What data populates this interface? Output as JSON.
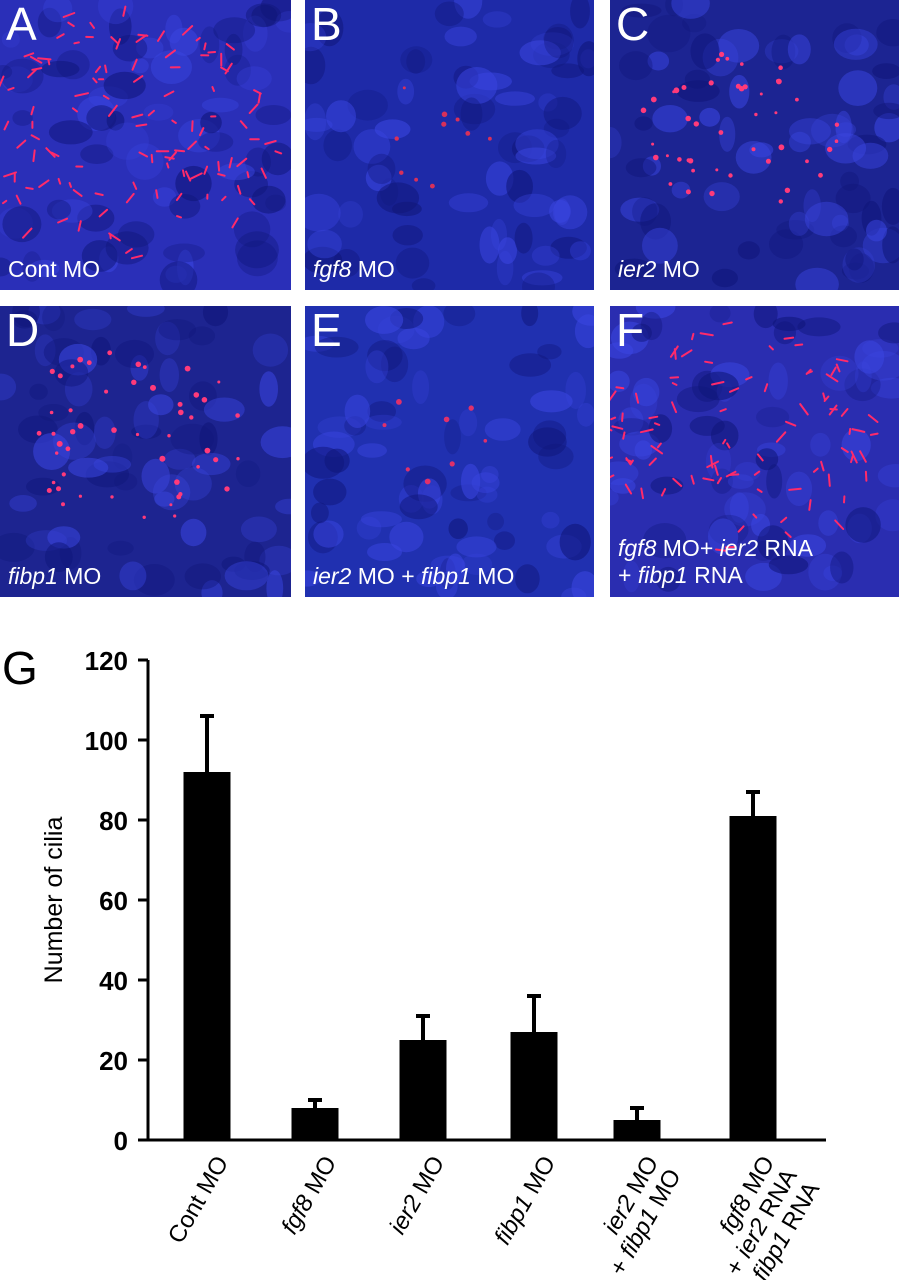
{
  "panels": [
    {
      "letter": "A",
      "caption": [
        {
          "t": "Cont MO",
          "i": false
        }
      ],
      "caption2": [],
      "bg": "#2a2fb8",
      "dots": 120,
      "dot_color": "#ff2a6a",
      "streaks": true,
      "spread": 0.55
    },
    {
      "letter": "B",
      "caption": [
        {
          "t": "fgf8",
          "i": true
        },
        {
          "t": " MO",
          "i": false
        }
      ],
      "caption2": [],
      "bg": "#1e2aa8",
      "dots": 10,
      "dot_color": "#d8305a",
      "streaks": false,
      "spread": 0.25
    },
    {
      "letter": "C",
      "caption": [
        {
          "t": "ier2",
          "i": true
        },
        {
          "t": " MO",
          "i": false
        }
      ],
      "caption2": [],
      "bg": "#1c2492",
      "dots": 45,
      "dot_color": "#ff3a7a",
      "streaks": false,
      "spread": 0.35
    },
    {
      "letter": "D",
      "caption": [
        {
          "t": "fibp1",
          "i": true
        },
        {
          "t": " MO",
          "i": false
        }
      ],
      "caption2": [],
      "bg": "#1d2490",
      "dots": 50,
      "dot_color": "#ff3a7a",
      "streaks": false,
      "spread": 0.4
    },
    {
      "letter": "E",
      "caption": [
        {
          "t": "ier2",
          "i": true
        },
        {
          "t": " MO + ",
          "i": false
        },
        {
          "t": "fibp1",
          "i": true
        },
        {
          "t": " MO",
          "i": false
        }
      ],
      "caption2": [],
      "bg": "#2030b0",
      "dots": 8,
      "dot_color": "#e0306a",
      "streaks": false,
      "spread": 0.2
    },
    {
      "letter": "F",
      "caption": [
        {
          "t": "fgf8",
          "i": true
        },
        {
          "t": " MO+ ",
          "i": false
        },
        {
          "t": "ier2",
          "i": true
        },
        {
          "t": " RNA",
          "i": false
        }
      ],
      "caption2": [
        {
          "t": "+ ",
          "i": false
        },
        {
          "t": "fibp1",
          "i": true
        },
        {
          "t": " RNA",
          "i": false
        }
      ],
      "bg": "#2a2db0",
      "dots": 90,
      "dot_color": "#ff2a6a",
      "streaks": true,
      "spread": 0.5
    }
  ],
  "chart_label": "G",
  "chart_data": {
    "type": "bar",
    "ylabel": "Number of cilia",
    "ylim": [
      0,
      120
    ],
    "yticks": [
      "0",
      "20",
      "40",
      "60",
      "80",
      "100",
      "120"
    ],
    "categories": [
      [
        {
          "t": "Cont MO",
          "i": false
        }
      ],
      [
        {
          "t": "fgf8",
          "i": true
        },
        {
          "t": " MO",
          "i": false
        }
      ],
      [
        {
          "t": "ier2",
          "i": true
        },
        {
          "t": " MO",
          "i": false
        }
      ],
      [
        {
          "t": "fibp1",
          "i": true
        },
        {
          "t": " MO",
          "i": false
        }
      ],
      [
        {
          "t": "ier2",
          "i": true
        },
        {
          "t": " MO",
          "i": false
        },
        {
          "br": true
        },
        {
          "t": "+ ",
          "i": false
        },
        {
          "t": "fibp1",
          "i": true
        },
        {
          "t": " MO",
          "i": false
        }
      ],
      [
        {
          "t": "fgf8",
          "i": true
        },
        {
          "t": " MO",
          "i": false
        },
        {
          "br": true
        },
        {
          "t": "+ ",
          "i": false
        },
        {
          "t": "ier2",
          "i": true
        },
        {
          "t": " RNA",
          "i": false
        },
        {
          "br": true
        },
        {
          "t": "+ ",
          "i": false
        },
        {
          "t": "fibp1",
          "i": true
        },
        {
          "t": " RNA",
          "i": false
        }
      ]
    ],
    "values": [
      92,
      8,
      25,
      27,
      5,
      81
    ],
    "errors": [
      14,
      2,
      6,
      9,
      3,
      6
    ],
    "bar_color": "#000000"
  }
}
